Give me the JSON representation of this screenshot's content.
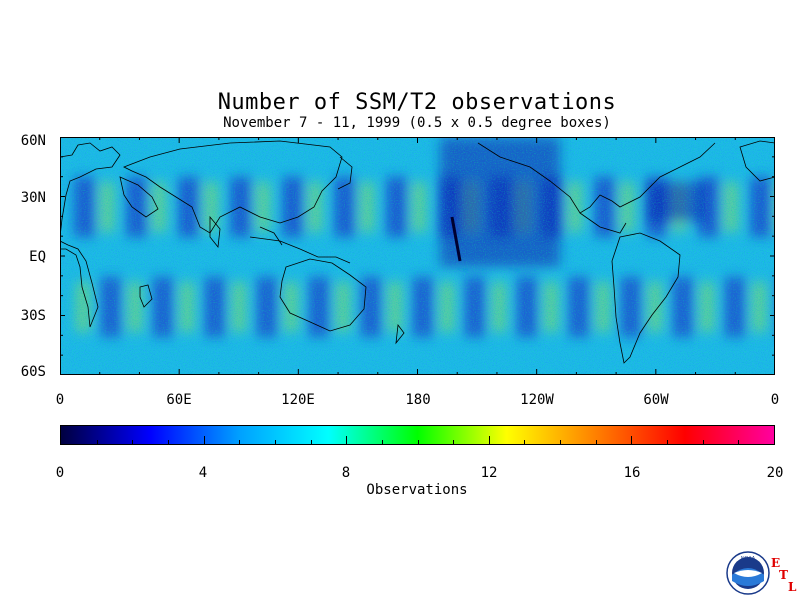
{
  "title": "Number of SSM/T2 observations",
  "subtitle": "November 7 - 11, 1999 (0.5 x 0.5 degree boxes)",
  "lat_labels": [
    "60N",
    "30N",
    "EQ",
    "30S",
    "60S"
  ],
  "lon_labels": [
    "0",
    "60E",
    "120E",
    "180",
    "120W",
    "60W",
    "0"
  ],
  "colorbar": {
    "ticks": [
      "0",
      "4",
      "8",
      "12",
      "16",
      "20"
    ],
    "label": "Observations",
    "min": 0,
    "max": 20,
    "colors": [
      "#000040",
      "#0000ff",
      "#00a0ff",
      "#00ffff",
      "#00ff00",
      "#ffff00",
      "#ff8000",
      "#ff0000",
      "#ff00a0"
    ]
  },
  "chart_data": {
    "type": "heatmap",
    "title": "Number of SSM/T2 observations",
    "subtitle": "November 7 - 11, 1999 (0.5 x 0.5 degree boxes)",
    "x_range": [
      "0",
      "0"
    ],
    "y_range": [
      "60S",
      "60N"
    ],
    "colorbar_range": [
      0,
      20
    ],
    "colorbar_label": "Observations"
  },
  "logo": {
    "agency": "NOAA",
    "lab_letters": [
      "E",
      "T",
      "L"
    ]
  }
}
